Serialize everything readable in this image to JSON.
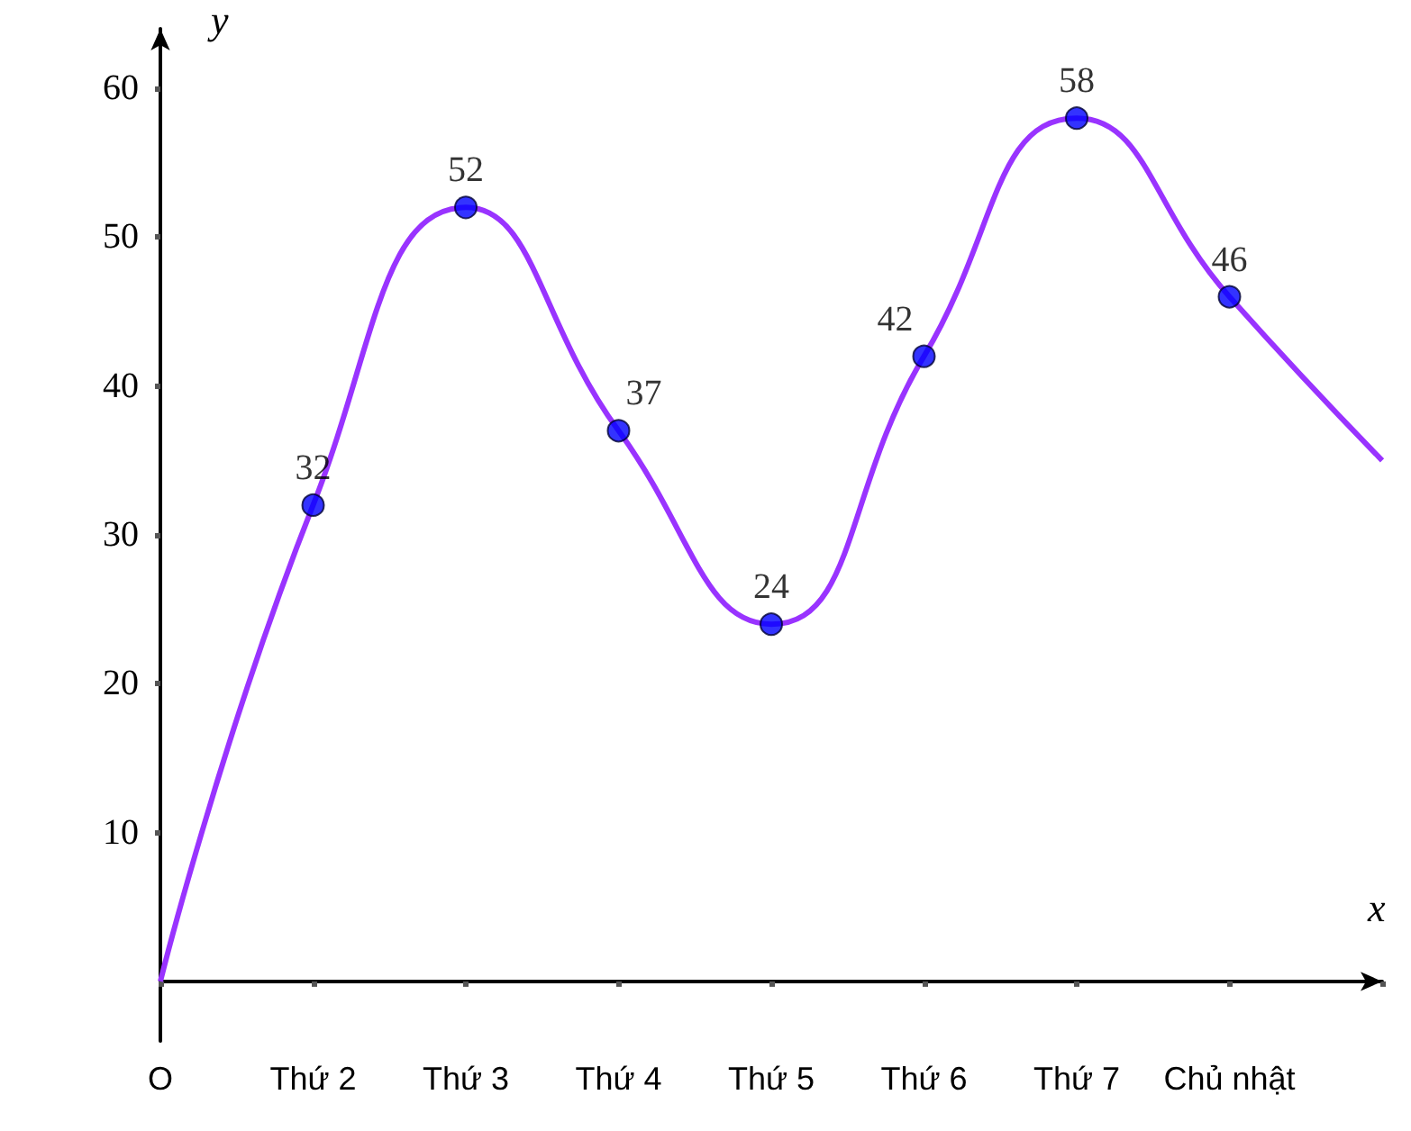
{
  "chart_data": {
    "type": "line",
    "xlabel": "x",
    "ylabel": "y",
    "ylim": [
      -4,
      64
    ],
    "categories": [
      "O",
      "Thứ 2",
      "Thứ 3",
      "Thứ 4",
      "Thứ 5",
      "Thứ 6",
      "Thứ 7",
      "Chủ nhật",
      null
    ],
    "yticks": [
      10,
      20,
      30,
      40,
      50,
      60
    ],
    "series": [
      {
        "color": "#9933ff",
        "marker": "none",
        "values": [
          0,
          32,
          52,
          37,
          24,
          42,
          58,
          46,
          35
        ]
      },
      {
        "type": "scatter",
        "color": "#0000ff",
        "marker": "circle",
        "values": [
          null,
          32,
          52,
          37,
          24,
          42,
          58,
          46,
          null
        ],
        "value_labels": [
          null,
          "32",
          "52",
          "37",
          "24",
          "42",
          "58",
          "46",
          null
        ]
      }
    ]
  }
}
